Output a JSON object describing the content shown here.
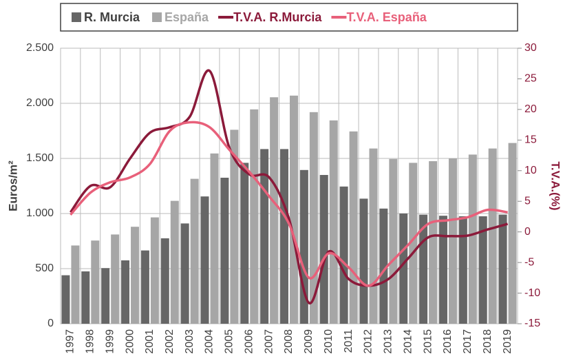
{
  "chart_data": {
    "type": "bar-line",
    "y_axis_label": "Euros/m²",
    "y2_axis_label": "T.V.A.(%)",
    "categories": [
      "1997",
      "1998",
      "1999",
      "2000",
      "2001",
      "2002",
      "2003",
      "2004",
      "2005",
      "2006",
      "2007",
      "2008",
      "2009",
      "2010",
      "2011",
      "2012",
      "2013",
      "2014",
      "2015",
      "2016",
      "2017",
      "2018",
      "2019"
    ],
    "series": [
      {
        "name": "R. Murcia",
        "type": "bar",
        "color": "#666666",
        "values": [
          440,
          475,
          505,
          575,
          665,
          775,
          910,
          1155,
          1325,
          1460,
          1585,
          1585,
          1395,
          1350,
          1245,
          1135,
          1045,
          1000,
          990,
          980,
          975,
          975,
          990
        ]
      },
      {
        "name": "España",
        "type": "bar",
        "color": "#a6a6a6",
        "values": [
          710,
          755,
          810,
          880,
          965,
          1115,
          1315,
          1545,
          1760,
          1945,
          2055,
          2070,
          1920,
          1845,
          1745,
          1590,
          1495,
          1460,
          1475,
          1500,
          1535,
          1590,
          1640
        ]
      },
      {
        "name": "T.V.A. R.Murcia",
        "type": "line",
        "axis": "y2",
        "color": "#8b1a3a",
        "values": [
          3.2,
          7.5,
          7.3,
          12,
          16.2,
          17.1,
          18.8,
          26.3,
          13.7,
          9.4,
          8.9,
          2.1,
          -11.6,
          -3.2,
          -7.7,
          -8.8,
          -7.7,
          -4.3,
          -0.9,
          -0.7,
          -0.6,
          0.4,
          1.3
        ]
      },
      {
        "name": "T.V.A. España",
        "type": "line",
        "axis": "y2",
        "color": "#e8607a",
        "values": [
          2.8,
          6.4,
          8.1,
          8.9,
          11.1,
          16.5,
          17.9,
          17.1,
          13.4,
          9.8,
          5.8,
          1.3,
          -7.5,
          -3.5,
          -5.8,
          -8.8,
          -5.4,
          -2.1,
          1.3,
          1.9,
          2.4,
          3.6,
          3.2
        ]
      }
    ],
    "ylim": [
      0,
      2500
    ],
    "yticks": [
      0,
      500,
      {
        "value": 1000,
        "label": "1.000"
      },
      {
        "value": 1500,
        "label": "1.500"
      },
      {
        "value": 2000,
        "label": "2.000"
      },
      {
        "value": 2500,
        "label": "2.500"
      }
    ],
    "y2lim": [
      -15,
      30
    ],
    "y2ticks": [
      -15,
      -10,
      -5,
      0,
      5,
      10,
      15,
      20,
      25,
      30
    ],
    "y2_color": "#8b1a3a",
    "grid": true,
    "legend": "top"
  }
}
